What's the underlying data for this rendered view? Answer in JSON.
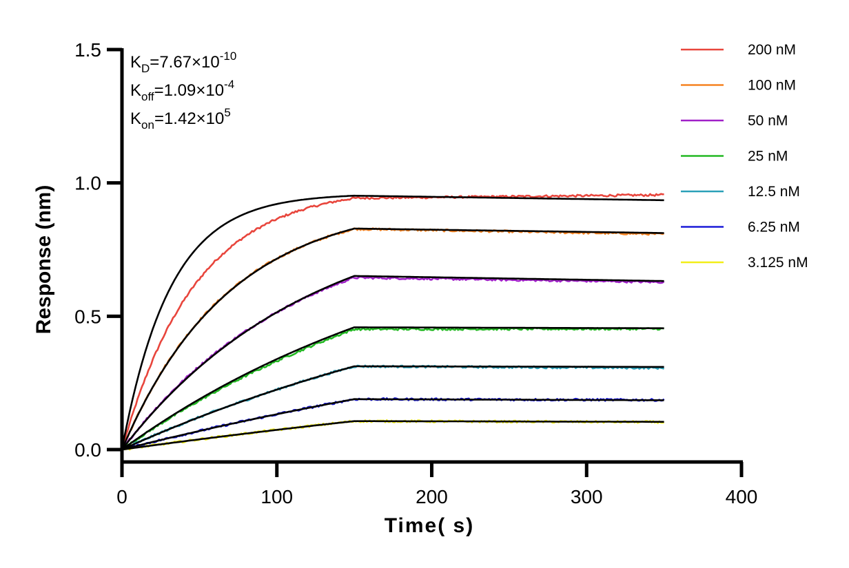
{
  "chart_data": {
    "type": "line",
    "title": "",
    "xlabel": "Time( s)",
    "ylabel": "Response (nm)",
    "xlim": [
      0,
      400
    ],
    "ylim": [
      0,
      1.5
    ],
    "xticks": [
      0,
      100,
      200,
      300,
      400
    ],
    "yticks": [
      0.0,
      0.5,
      1.0,
      1.5
    ],
    "xtick_labels": [
      "0",
      "100",
      "200",
      "300",
      "400"
    ],
    "ytick_labels": [
      "0.0",
      "0.5",
      "1.0",
      "1.5"
    ],
    "grid": false,
    "legend_position": "top-right",
    "association_end_s": 150,
    "dissociation_end_s": 350,
    "fit_color": "#000000",
    "kinetics": [
      {
        "label": "K",
        "sub": "D",
        "value": "=7.67×10",
        "exp": "-10"
      },
      {
        "label": "K",
        "sub": "off",
        "value": "=1.09×10",
        "exp": "-4"
      },
      {
        "label": "K",
        "sub": "on",
        "value": "=1.42×10",
        "exp": "5"
      }
    ],
    "series": [
      {
        "name": "200 nM",
        "color": "#e8453c",
        "fit_plateau": 0.96,
        "fit_rate": 0.032,
        "obs_plateau": 0.985,
        "obs_rate": 0.021,
        "diss_end_fit": 0.935,
        "diss_end_obs": 0.955
      },
      {
        "name": "100 nM",
        "color": "#f58220",
        "fit_plateau": 0.935,
        "fit_rate": 0.0145,
        "obs_plateau": 0.93,
        "obs_rate": 0.0147,
        "diss_end_fit": 0.812,
        "diss_end_obs": 0.808
      },
      {
        "name": "50 nM",
        "color": "#a020c8",
        "fit_plateau": 0.92,
        "fit_rate": 0.0082,
        "obs_plateau": 0.88,
        "obs_rate": 0.0088,
        "diss_end_fit": 0.632,
        "diss_end_obs": 0.628
      },
      {
        "name": "25 nM",
        "color": "#22b822",
        "fit_plateau": 0.92,
        "fit_rate": 0.0046,
        "obs_plateau": 0.95,
        "obs_rate": 0.0043,
        "diss_end_fit": 0.455,
        "diss_end_obs": 0.453
      },
      {
        "name": "12.5 nM",
        "color": "#2aa0b8",
        "fit_plateau": 0.8,
        "fit_rate": 0.0033,
        "obs_plateau": 0.8,
        "obs_rate": 0.0033,
        "diss_end_fit": 0.31,
        "diss_end_obs": 0.306
      },
      {
        "name": "6.25 nM",
        "color": "#1a1ad8",
        "fit_plateau": 0.7,
        "fit_rate": 0.0021,
        "obs_plateau": 0.7,
        "obs_rate": 0.0021,
        "diss_end_fit": 0.185,
        "diss_end_obs": 0.186
      },
      {
        "name": "3.125 nM",
        "color": "#f2ee18",
        "fit_plateau": 0.5,
        "fit_rate": 0.0016,
        "obs_plateau": 0.5,
        "obs_rate": 0.0016,
        "diss_end_fit": 0.104,
        "diss_end_obs": 0.103
      }
    ]
  }
}
